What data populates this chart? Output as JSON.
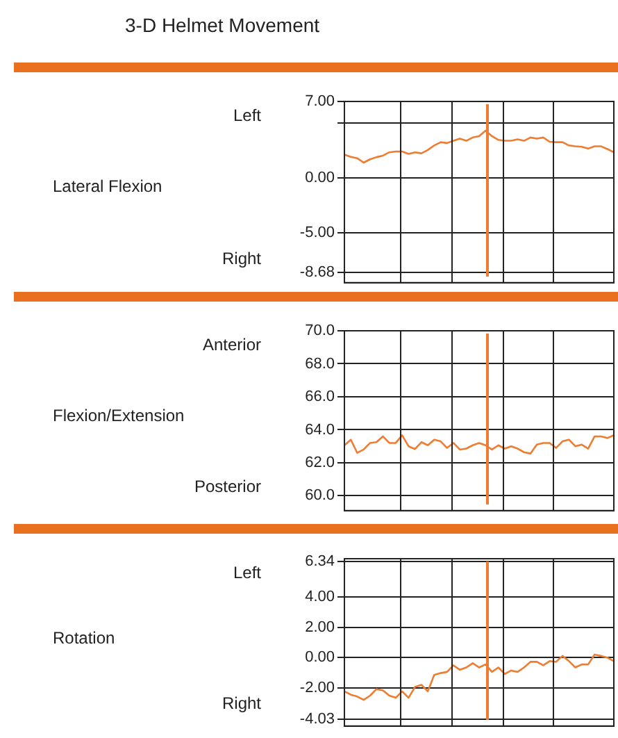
{
  "chart_data": [
    {
      "type": "line",
      "title": "3-D Helmet Movement",
      "ylabel": "Lateral Flexion",
      "annotations": [
        "Left",
        "Right"
      ],
      "categories": [
        null,
        null,
        null,
        null,
        null,
        null,
        null,
        null,
        null,
        null,
        null,
        null,
        null,
        null,
        null,
        null,
        null,
        null,
        null,
        null,
        null,
        null,
        null,
        null,
        null,
        null,
        null,
        null,
        null,
        null,
        null,
        null,
        null,
        null,
        null,
        null,
        null,
        null,
        null,
        null,
        null,
        null,
        null
      ],
      "series": [
        {
          "color": "#ee7d31",
          "values": [
            2.13,
            1.92,
            1.8,
            1.4,
            1.7,
            1.9,
            2.04,
            2.34,
            2.42,
            2.42,
            2.2,
            2.34,
            2.25,
            2.55,
            2.97,
            3.27,
            3.19,
            3.4,
            3.6,
            3.4,
            3.7,
            3.82,
            4.33,
            3.82,
            3.48,
            3.4,
            3.4,
            3.53,
            3.4,
            3.7,
            3.6,
            3.7,
            3.31,
            3.27,
            3.27,
            2.97,
            2.89,
            2.85,
            2.68,
            2.89,
            2.89,
            2.64,
            2.34
          ]
        }
      ],
      "ylim": [
        -9.6,
        7.0
      ],
      "yticks": [
        {
          "value": 7.0,
          "label": "7.00"
        },
        {
          "value": 5.0,
          "label": null
        },
        {
          "value": 0.0,
          "label": "0.00"
        },
        {
          "value": -5.0,
          "label": "-5.00"
        },
        {
          "value": -8.68,
          "label": "-8.68"
        }
      ],
      "grid": "y",
      "tick_labels": "y"
    },
    {
      "type": "line",
      "ylabel": "Flexion/Extension",
      "annotations": [
        "Anterior",
        "Posterior"
      ],
      "categories": [
        null,
        null,
        null,
        null,
        null,
        null,
        null,
        null,
        null,
        null,
        null,
        null,
        null,
        null,
        null,
        null,
        null,
        null,
        null,
        null,
        null,
        null,
        null,
        null,
        null,
        null,
        null,
        null,
        null,
        null,
        null,
        null,
        null,
        null,
        null,
        null,
        null,
        null,
        null,
        null,
        null,
        null,
        null
      ],
      "series": [
        {
          "color": "#ee7d31",
          "values": [
            63.06,
            63.4,
            62.6,
            62.8,
            63.2,
            63.25,
            63.6,
            63.2,
            63.2,
            63.67,
            63.0,
            62.83,
            63.25,
            63.06,
            63.4,
            63.3,
            62.9,
            63.2,
            62.8,
            62.86,
            63.06,
            63.2,
            63.06,
            62.8,
            63.06,
            62.86,
            63.0,
            62.86,
            62.64,
            62.56,
            63.1,
            63.2,
            63.2,
            62.9,
            63.3,
            63.4,
            63.0,
            63.1,
            62.86,
            63.6,
            63.6,
            63.5,
            63.67
          ]
        }
      ],
      "ylim": [
        59.1,
        70.0
      ],
      "yticks": [
        {
          "value": 70,
          "label": "70.0"
        },
        {
          "value": 68,
          "label": "68.0"
        },
        {
          "value": 66,
          "label": "66.0"
        },
        {
          "value": 64,
          "label": "64.0"
        },
        {
          "value": 62,
          "label": "62.0"
        },
        {
          "value": 60,
          "label": "60.0"
        }
      ],
      "grid": "y",
      "tick_labels": "y"
    },
    {
      "type": "line",
      "ylabel": "Rotation",
      "annotations": [
        "Left",
        "Right"
      ],
      "categories": [
        null,
        null,
        null,
        null,
        null,
        null,
        null,
        null,
        null,
        null,
        null,
        null,
        null,
        null,
        null,
        null,
        null,
        null,
        null,
        null,
        null,
        null,
        null,
        null,
        null,
        null,
        null,
        null,
        null,
        null,
        null,
        null,
        null,
        null,
        null,
        null,
        null,
        null,
        null,
        null,
        null,
        null,
        null
      ],
      "series": [
        {
          "color": "#ee7d31",
          "values": [
            -2.22,
            -2.44,
            -2.56,
            -2.78,
            -2.5,
            -2.07,
            -2.16,
            -2.5,
            -2.64,
            -2.22,
            -2.64,
            -1.93,
            -1.79,
            -2.22,
            -1.14,
            -1.02,
            -0.94,
            -0.51,
            -0.8,
            -0.65,
            -0.37,
            -0.65,
            -0.45,
            -0.94,
            -0.65,
            -1.08,
            -0.85,
            -0.94,
            -0.65,
            -0.28,
            -0.28,
            -0.51,
            -0.23,
            -0.28,
            0.11,
            -0.23,
            -0.65,
            -0.45,
            -0.45,
            0.2,
            0.11,
            0.0,
            -0.23
          ]
        }
      ],
      "ylim": [
        -4.5,
        6.5
      ],
      "yticks": [
        {
          "value": 6.34,
          "label": "6.34"
        },
        {
          "value": 4,
          "label": "4.00"
        },
        {
          "value": 2,
          "label": "2.00"
        },
        {
          "value": 0,
          "label": "0.00"
        },
        {
          "value": -2,
          "label": "-2.00"
        },
        {
          "value": -4.03,
          "label": "-4.03"
        }
      ],
      "grid": "y",
      "tick_labels": "y"
    }
  ]
}
